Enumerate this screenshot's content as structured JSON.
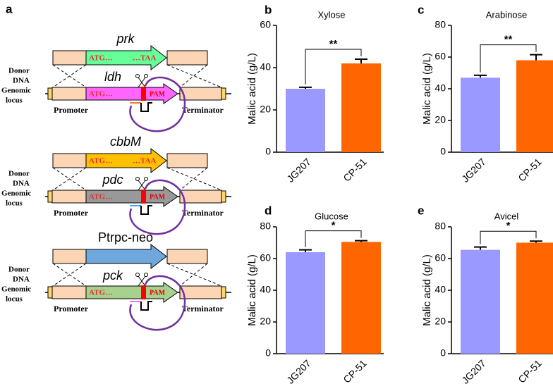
{
  "panel_a": {
    "panel": "a",
    "blocks": [
      {
        "donor_label": [
          "Donor",
          "DNA"
        ],
        "donor_gene": "prk",
        "donor_start": "ATG…",
        "donor_stop": "…TAA",
        "locus_label": [
          "Genomic",
          "locus"
        ],
        "target_gene": "ldh",
        "target_start": "ATG…",
        "pam": "PAM",
        "promoter": "Promoter",
        "terminator": "Terminator"
      },
      {
        "donor_label": [
          "Donor",
          "DNA"
        ],
        "donor_gene": "cbbM",
        "donor_start": "ATG…",
        "donor_stop": "…TAA",
        "locus_label": [
          "Genomic",
          "locus"
        ],
        "target_gene": "pdc",
        "target_start": "ATG…",
        "pam": "PAM",
        "promoter": "Promoter",
        "terminator": "Terminator"
      },
      {
        "donor_label": [
          "Donor",
          "DNA"
        ],
        "donor_gene": "Ptrpc-neo",
        "locus_label": [
          "Genomic",
          "locus"
        ],
        "target_gene": "pck",
        "target_start": "ATG…",
        "pam": "PAM",
        "promoter": "Promoter",
        "terminator": "Terminator"
      }
    ]
  },
  "chart_data": [
    {
      "type": "bar",
      "panel": "b",
      "title": "Xylose",
      "ylabel": "Malic acid (g/L)",
      "categories": [
        "JG207",
        "CP-51"
      ],
      "values": [
        30,
        42
      ],
      "errors": [
        0.7,
        2
      ],
      "colors": [
        "#9999ff",
        "#ff6600"
      ],
      "ylim": [
        0,
        60
      ],
      "yticks": [
        0,
        20,
        40,
        60
      ],
      "significance": "**"
    },
    {
      "type": "bar",
      "panel": "c",
      "title": "Arabinose",
      "ylabel": "Malic acid (g/L)",
      "categories": [
        "JG207",
        "CP-51"
      ],
      "values": [
        47,
        58
      ],
      "errors": [
        1.5,
        3.5
      ],
      "colors": [
        "#9999ff",
        "#ff6600"
      ],
      "ylim": [
        0,
        80
      ],
      "yticks": [
        0,
        20,
        40,
        60,
        80
      ],
      "significance": "**"
    },
    {
      "type": "bar",
      "panel": "d",
      "title": "Glucose",
      "ylabel": "Malic acid (g/L)",
      "categories": [
        "JG207",
        "CP-51"
      ],
      "values": [
        64,
        70.5
      ],
      "errors": [
        1.5,
        0.8
      ],
      "colors": [
        "#9999ff",
        "#ff6600"
      ],
      "ylim": [
        0,
        80
      ],
      "yticks": [
        0,
        20,
        40,
        60,
        80
      ],
      "significance": "*"
    },
    {
      "type": "bar",
      "panel": "e",
      "title": "Avicel",
      "ylabel": "Malic acid (g/L)",
      "categories": [
        "JG207",
        "CP-51"
      ],
      "values": [
        65.5,
        70
      ],
      "errors": [
        1.8,
        1
      ],
      "colors": [
        "#9999ff",
        "#ff6600"
      ],
      "ylim": [
        0,
        80
      ],
      "yticks": [
        0,
        20,
        40,
        60,
        80
      ],
      "significance": "*"
    }
  ]
}
